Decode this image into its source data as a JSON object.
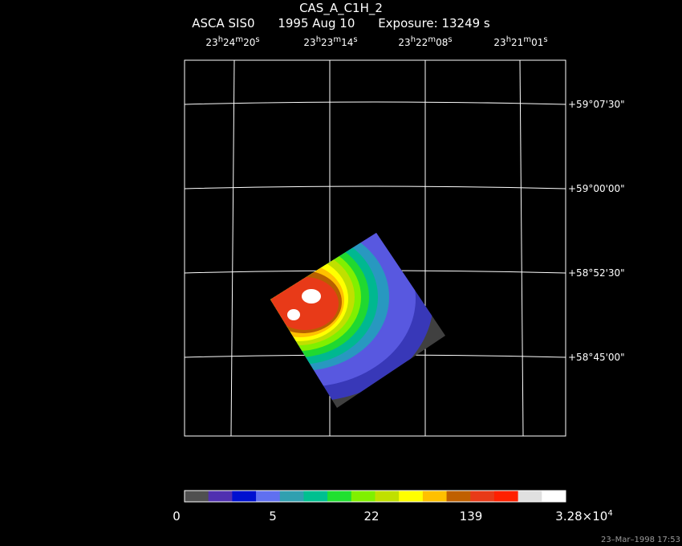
{
  "header": {
    "object": "CAS_A_C1H_2",
    "instrument": "ASCA SIS0",
    "date": "1995 Aug 10",
    "exposure": "Exposure: 13249 s"
  },
  "ra_labels": [
    {
      "h": "23",
      "m": "24",
      "s": "20"
    },
    {
      "h": "23",
      "m": "23",
      "s": "14"
    },
    {
      "h": "23",
      "m": "22",
      "s": "08"
    },
    {
      "h": "23",
      "m": "21",
      "s": "01"
    }
  ],
  "dec_labels": [
    "+59°07'30\"",
    "+59°00'00\"",
    "+58°52'30\"",
    "+58°45'00\""
  ],
  "colorbar": {
    "colors": [
      "#505050",
      "#5030b0",
      "#0010d0",
      "#6070f0",
      "#30a0b0",
      "#00c090",
      "#20e030",
      "#80f000",
      "#c0e000",
      "#ffff00",
      "#ffc000",
      "#c06000",
      "#e83a18",
      "#ff2000",
      "#e0e0e0",
      "#ffffff"
    ],
    "labels": [
      "0",
      "5",
      "22",
      "139"
    ],
    "max_mantissa": "3.28×10",
    "max_exp": "4"
  },
  "timestamp": "23–Mar–1998 17:53"
}
